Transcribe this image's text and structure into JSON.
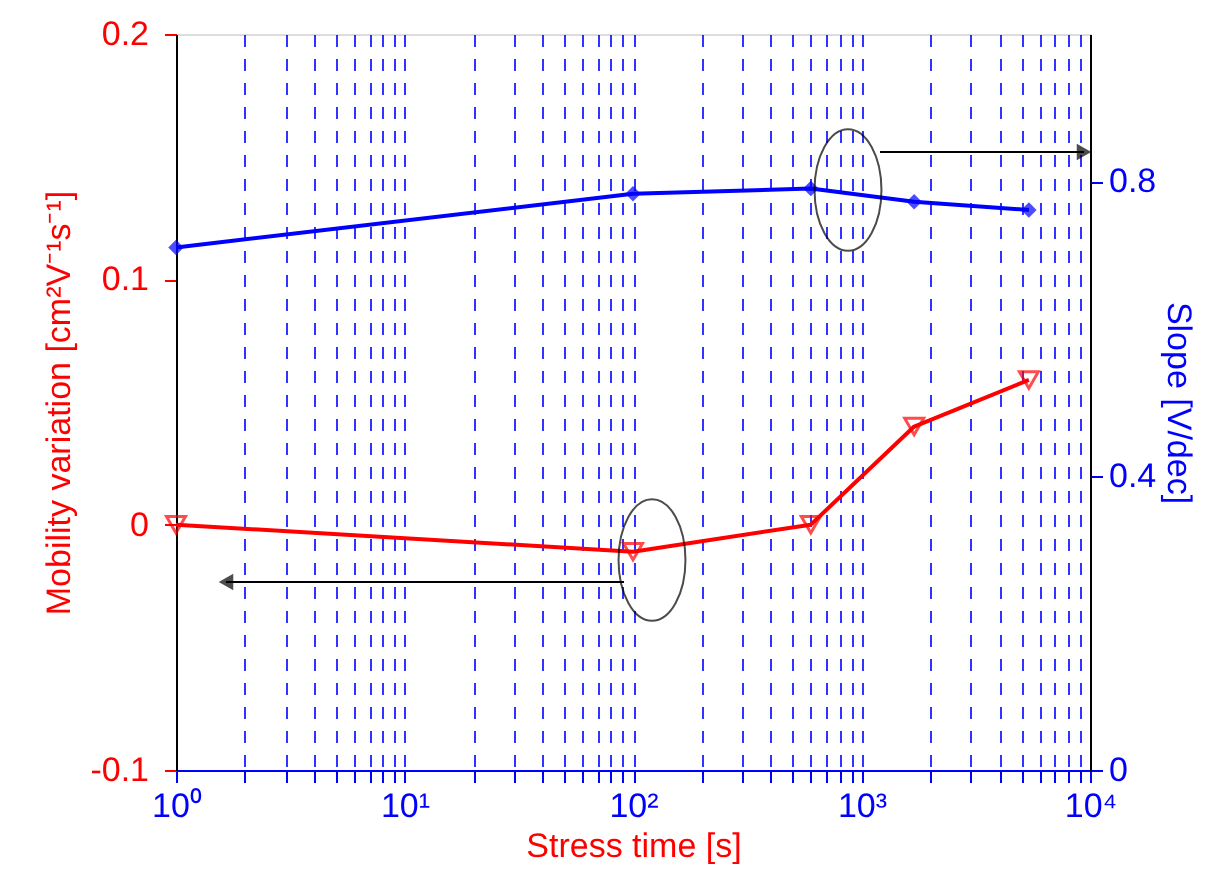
{
  "chart_data": {
    "type": "line",
    "xlabel": "Stress time [s]",
    "ylabel": "Mobility variation [cm²V⁻¹s⁻¹]",
    "y2label": "Slope [V/dec]",
    "log": "x",
    "xlim": [
      1,
      10000
    ],
    "xticks": [
      {
        "value": 1,
        "label": "10⁰"
      },
      {
        "value": 2,
        "label": null
      },
      {
        "value": 3,
        "label": null
      },
      {
        "value": 4,
        "label": null
      },
      {
        "value": 5,
        "label": null
      },
      {
        "value": 6,
        "label": null
      },
      {
        "value": 7,
        "label": null
      },
      {
        "value": 8,
        "label": null
      },
      {
        "value": 9,
        "label": null
      },
      {
        "value": 10,
        "label": "10¹"
      },
      {
        "value": 20,
        "label": null
      },
      {
        "value": 30,
        "label": null
      },
      {
        "value": 40,
        "label": null
      },
      {
        "value": 50,
        "label": null
      },
      {
        "value": 60,
        "label": null
      },
      {
        "value": 70,
        "label": null
      },
      {
        "value": 80,
        "label": null
      },
      {
        "value": 90,
        "label": null
      },
      {
        "value": 100,
        "label": "10²"
      },
      {
        "value": 200,
        "label": null
      },
      {
        "value": 300,
        "label": null
      },
      {
        "value": 400,
        "label": null
      },
      {
        "value": 500,
        "label": null
      },
      {
        "value": 600,
        "label": null
      },
      {
        "value": 700,
        "label": null
      },
      {
        "value": 800,
        "label": null
      },
      {
        "value": 900,
        "label": null
      },
      {
        "value": 1000,
        "label": "10³"
      },
      {
        "value": 2000,
        "label": null
      },
      {
        "value": 3000,
        "label": null
      },
      {
        "value": 4000,
        "label": null
      },
      {
        "value": 5000,
        "label": null
      },
      {
        "value": 6000,
        "label": null
      },
      {
        "value": 7000,
        "label": null
      },
      {
        "value": 8000,
        "label": null
      },
      {
        "value": 9000,
        "label": null
      },
      {
        "value": 10000,
        "label": "10⁴"
      }
    ],
    "ylim": [
      -0.1,
      0.2
    ],
    "yticks": [
      -0.1,
      0,
      0.1,
      0.2
    ],
    "y2lim": [
      0,
      1
    ],
    "y2ticks": [
      0,
      0.4,
      0.8
    ],
    "grid": "x",
    "legend": false,
    "series": [
      {
        "color": "#ff0000",
        "marker": "triangle",
        "x": [
          1,
          100,
          600,
          1700,
          5400
        ],
        "values": [
          0,
          -0.011,
          0,
          0.04,
          0.059
        ]
      },
      {
        "color": "#0000ff",
        "marker": "diamond",
        "axis": "y2",
        "x": [
          1,
          100,
          600,
          1700,
          5400
        ],
        "values": [
          0.71,
          0.783,
          0.79,
          0.772,
          0.761
        ]
      }
    ]
  }
}
